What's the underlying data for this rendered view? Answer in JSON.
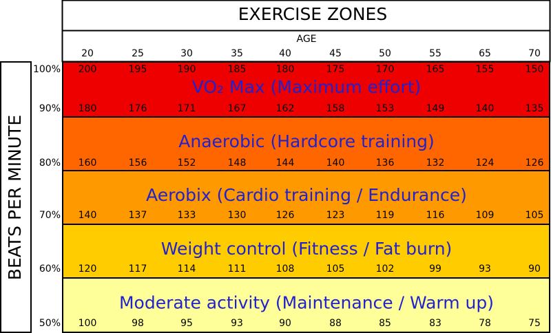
{
  "title": "EXERCISE ZONES",
  "x_label": "AGE",
  "y_label": "BEATS PER MINUTE",
  "ages": [
    20,
    25,
    30,
    35,
    40,
    45,
    50,
    55,
    65,
    70
  ],
  "rows": [
    {
      "percent": "100%",
      "values": [
        200,
        195,
        190,
        185,
        180,
        175,
        170,
        165,
        155,
        150
      ]
    },
    {
      "percent": "90%",
      "values": [
        180,
        176,
        171,
        167,
        162,
        158,
        153,
        149,
        140,
        135
      ]
    },
    {
      "percent": "80%",
      "values": [
        160,
        156,
        152,
        148,
        144,
        140,
        136,
        132,
        124,
        126
      ]
    },
    {
      "percent": "70%",
      "values": [
        140,
        137,
        133,
        130,
        126,
        123,
        119,
        116,
        109,
        105
      ]
    },
    {
      "percent": "60%",
      "values": [
        120,
        117,
        114,
        111,
        108,
        105,
        102,
        99,
        93,
        90
      ]
    },
    {
      "percent": "50%",
      "values": [
        100,
        98,
        95,
        93,
        90,
        88,
        85,
        83,
        78,
        75
      ]
    }
  ],
  "zones": [
    "VO₂ Max (Maximum effort)",
    "Anaerobic (Hardcore training)",
    "Aerobix (Cardio training / Endurance)",
    "Weight control (Fitness / Fat burn)",
    "Moderate activity (Maintenance / Warm up)"
  ]
}
